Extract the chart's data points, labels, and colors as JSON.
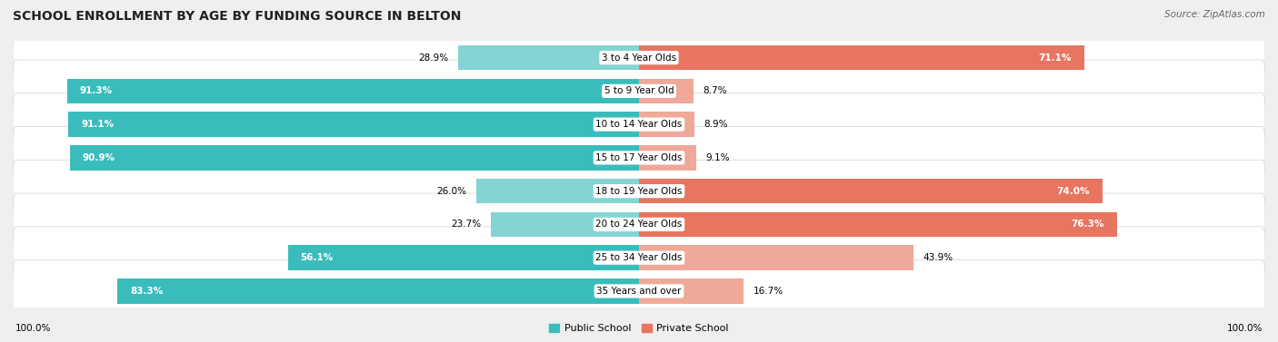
{
  "title": "SCHOOL ENROLLMENT BY AGE BY FUNDING SOURCE IN BELTON",
  "source": "Source: ZipAtlas.com",
  "categories": [
    "3 to 4 Year Olds",
    "5 to 9 Year Old",
    "10 to 14 Year Olds",
    "15 to 17 Year Olds",
    "18 to 19 Year Olds",
    "20 to 24 Year Olds",
    "25 to 34 Year Olds",
    "35 Years and over"
  ],
  "public_values": [
    28.9,
    91.3,
    91.1,
    90.9,
    26.0,
    23.7,
    56.1,
    83.3
  ],
  "private_values": [
    71.1,
    8.7,
    8.9,
    9.1,
    74.0,
    76.3,
    43.9,
    16.7
  ],
  "public_color_dark": "#3bbcbc",
  "public_color_light": "#85d4d4",
  "private_color_dark": "#e87560",
  "private_color_light": "#f0a898",
  "background_color": "#efefef",
  "bar_bg_color": "#ffffff",
  "x_axis_left_label": "100.0%",
  "x_axis_right_label": "100.0%",
  "legend_public": "Public School",
  "legend_private": "Private School",
  "title_fontsize": 10,
  "source_fontsize": 7.5,
  "bar_label_fontsize": 7.5,
  "category_fontsize": 7.5
}
